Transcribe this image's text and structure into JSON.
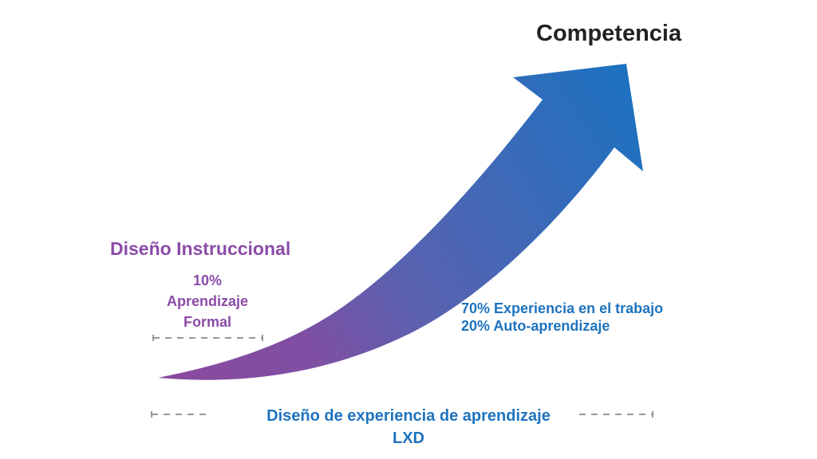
{
  "title": "Competencia",
  "left": {
    "heading": "Diseño Instruccional",
    "lines": [
      "10%",
      "Aprendizaje",
      "Formal"
    ]
  },
  "right": {
    "lines": [
      "70% Experiencia en el trabajo",
      "20% Auto-aprendizaje"
    ]
  },
  "bottom": {
    "lines": [
      "Diseño de experiencia de aprendizaje",
      "LXD"
    ]
  },
  "colors": {
    "purple": "#8b4ca8",
    "blue": "#1e73be",
    "title": "#222222"
  }
}
